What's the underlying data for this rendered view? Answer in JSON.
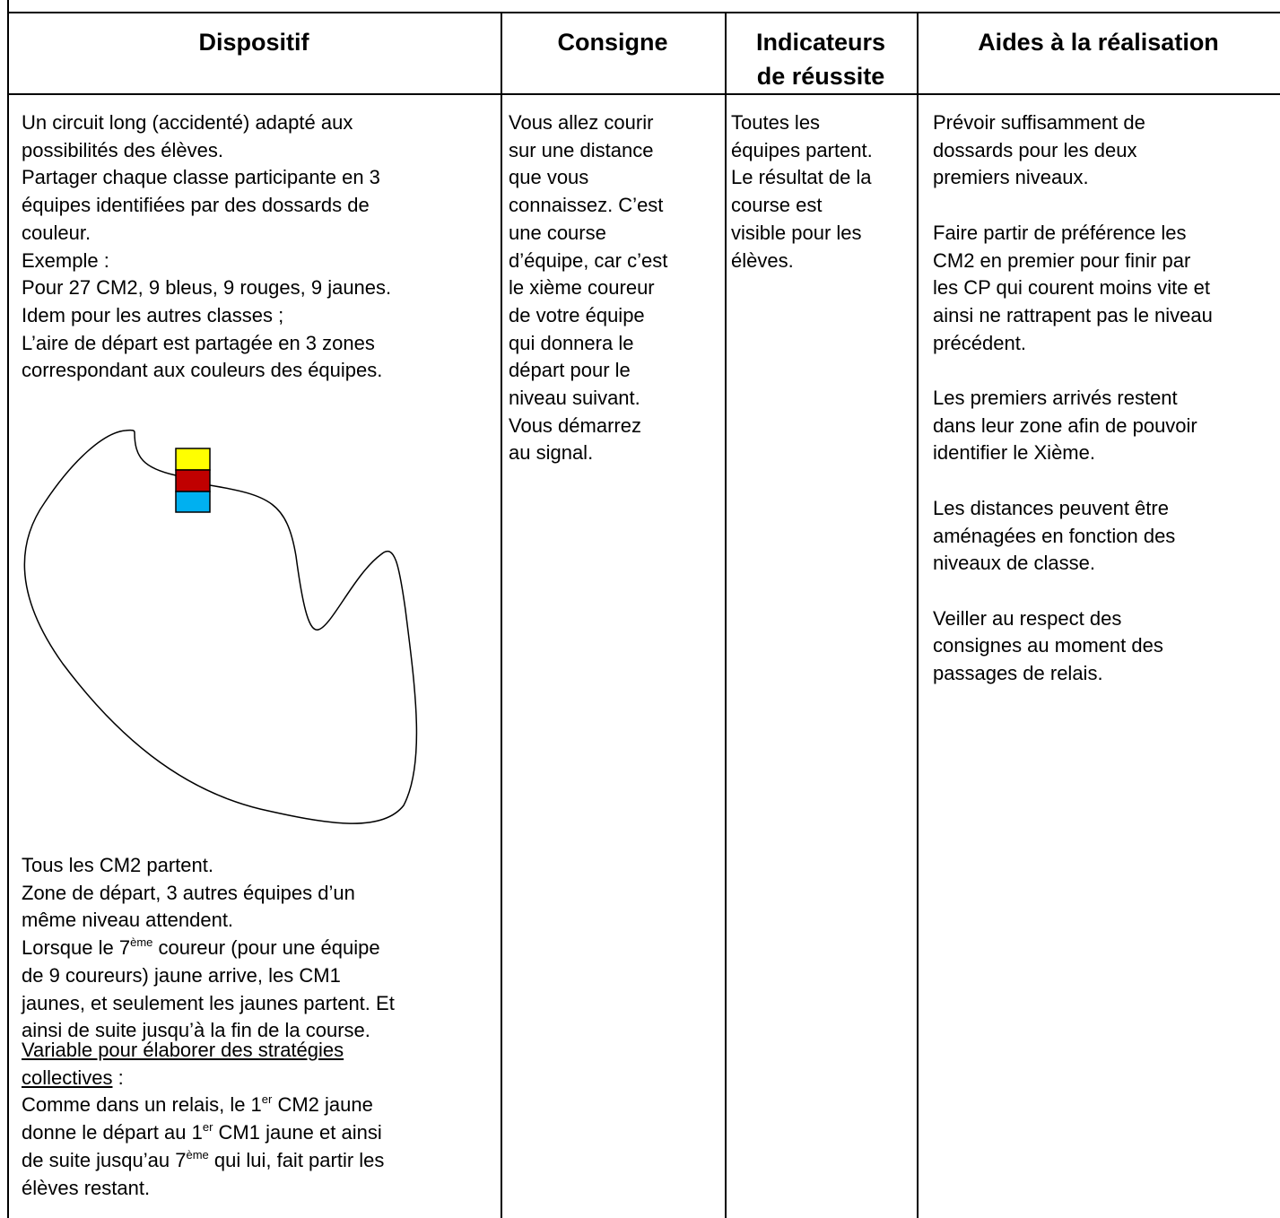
{
  "header": [
    "Dispositif",
    "Consigne",
    [
      "Indicateurs",
      "de réussite"
    ],
    "Aides à la réalisation"
  ],
  "dispositif": [
    [
      "Un circuit long (accidenté) adapté aux",
      "possibilités des élèves.",
      "Partager chaque classe participante en 3",
      "équipes identifiées par des dossards de",
      "couleur.",
      "Exemple :",
      "Pour 27 CM2, 9 bleus, 9 rouges, 9 jaunes.",
      "Idem pour les autres classes ;",
      "L’aire de départ est partagée en 3 zones",
      "correspondant aux couleurs des équipes."
    ],
    [
      "Tous les CM2 partent.",
      "Zone de départ, 3 autres équipes d’un",
      "même niveau attendent.",
      [
        "Lorsque le 7",
        {
          "sup": "ème"
        },
        " coureur (pour une équipe"
      ],
      "de 9 coureurs) jaune arrive, les CM1",
      "jaunes, et seulement les jaunes partent. Et",
      "ainsi de suite jusqu’à la fin de la course."
    ],
    [
      [
        {
          "u": "Variable pour élaborer des stratégies"
        }
      ],
      [
        {
          "u": "collectives"
        },
        " :"
      ],
      [
        "Comme dans un relais, le 1",
        {
          "sup": "er"
        },
        " CM2 jaune"
      ],
      [
        "donne le départ au 1",
        {
          "sup": "er"
        },
        " CM1 jaune et ainsi"
      ],
      [
        "de suite jusqu’au 7",
        {
          "sup": "ème"
        },
        " qui lui, fait partir les"
      ],
      "élèves restant."
    ]
  ],
  "consigne": [
    [
      "Vous allez courir",
      "sur une distance",
      "que vous",
      "connaissez. C’est",
      "une course",
      "d’équipe, car c’est",
      "le xième coureur",
      "de votre équipe",
      "qui donnera le",
      "départ pour le",
      "niveau suivant.",
      "Vous démarrez",
      "au signal."
    ]
  ],
  "indicateurs": [
    [
      "Toutes les",
      "équipes partent.",
      "Le résultat de la",
      "course est",
      "visible pour les",
      "élèves."
    ]
  ],
  "aides": [
    [
      "Prévoir suffisamment de",
      "dossards pour les deux",
      "premiers niveaux."
    ],
    [
      "Faire partir de préférence les",
      "CM2 en premier pour finir par",
      "les CP qui courent moins vite et",
      "ainsi ne rattrapent pas le niveau",
      "précédent."
    ],
    [
      "Les premiers arrivés restent",
      "dans leur zone afin de pouvoir",
      "identifier le Xième."
    ],
    [
      "Les distances peuvent être",
      "aménagées en fonction des",
      "niveaux de classe."
    ],
    [
      "Veiller au respect des",
      "consignes au moment des",
      "passages de relais."
    ]
  ]
}
